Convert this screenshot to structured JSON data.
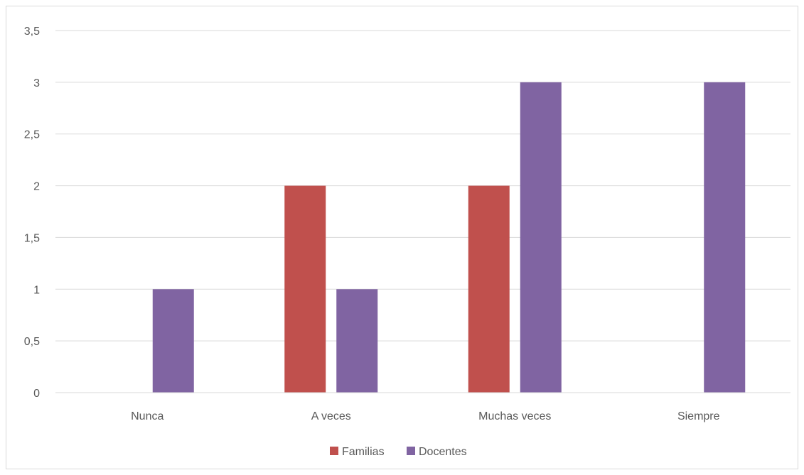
{
  "chart_data": {
    "type": "bar",
    "categories": [
      "Nunca",
      "A veces",
      "Muchas veces",
      "Siempre"
    ],
    "series": [
      {
        "name": "Familias",
        "values": [
          0,
          2,
          2,
          0
        ],
        "color": "#c0504d"
      },
      {
        "name": "Docentes",
        "values": [
          1,
          1,
          3,
          3
        ],
        "color": "#8064a2"
      }
    ],
    "ylim": [
      0,
      3.5
    ],
    "yticks": [
      "0",
      "0,5",
      "1",
      "1,5",
      "2",
      "2,5",
      "3",
      "3,5"
    ],
    "grid": true,
    "legend": "bottom"
  }
}
